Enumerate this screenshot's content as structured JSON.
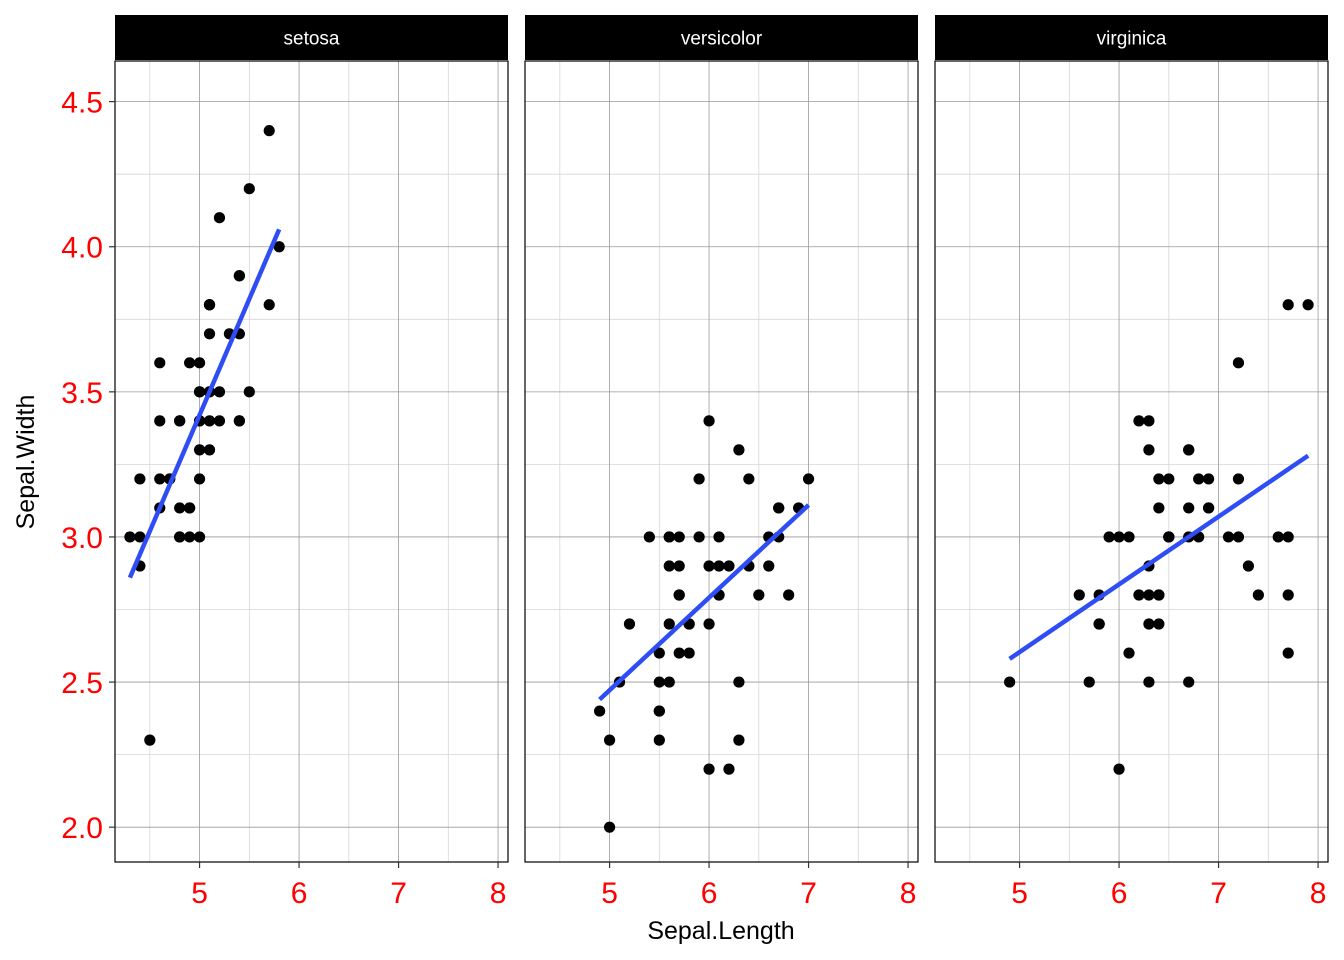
{
  "chart_data": {
    "type": "scatter",
    "xlabel": "Sepal.Length",
    "ylabel": "Sepal.Width",
    "xlim": [
      4.15,
      8.1
    ],
    "ylim": [
      1.88,
      4.64
    ],
    "x_ticks": [
      "5",
      "6",
      "7",
      "8"
    ],
    "y_ticks": [
      "2.0",
      "2.5",
      "3.0",
      "3.5",
      "4.0",
      "4.5"
    ],
    "x_tick_values": [
      5,
      6,
      7,
      8
    ],
    "y_tick_values": [
      2.0,
      2.5,
      3.0,
      3.5,
      4.0,
      4.5
    ],
    "grid": true,
    "colors": {
      "tick_label": "#ff0000",
      "point": "#000000",
      "fit_line": "#2e4df5",
      "strip_background": "#000000",
      "strip_text": "#ffffff",
      "grid_major": "#9a9a9a",
      "grid_minor": "#d6d6d6"
    },
    "panels": [
      {
        "name": "setosa",
        "fit": [
          [
            4.3,
            2.86
          ],
          [
            5.8,
            4.06
          ]
        ],
        "points": [
          [
            5.1,
            3.5
          ],
          [
            4.9,
            3.0
          ],
          [
            4.7,
            3.2
          ],
          [
            4.6,
            3.1
          ],
          [
            5.0,
            3.6
          ],
          [
            5.4,
            3.9
          ],
          [
            4.6,
            3.4
          ],
          [
            5.0,
            3.4
          ],
          [
            4.4,
            2.9
          ],
          [
            4.9,
            3.1
          ],
          [
            5.4,
            3.7
          ],
          [
            4.8,
            3.4
          ],
          [
            4.8,
            3.0
          ],
          [
            4.3,
            3.0
          ],
          [
            5.8,
            4.0
          ],
          [
            5.7,
            4.4
          ],
          [
            5.4,
            3.9
          ],
          [
            5.1,
            3.5
          ],
          [
            5.7,
            3.8
          ],
          [
            5.1,
            3.8
          ],
          [
            5.4,
            3.4
          ],
          [
            5.1,
            3.7
          ],
          [
            4.6,
            3.6
          ],
          [
            5.1,
            3.3
          ],
          [
            4.8,
            3.4
          ],
          [
            5.0,
            3.0
          ],
          [
            5.0,
            3.4
          ],
          [
            5.2,
            3.5
          ],
          [
            5.2,
            3.4
          ],
          [
            4.7,
            3.2
          ],
          [
            4.8,
            3.1
          ],
          [
            5.4,
            3.4
          ],
          [
            5.2,
            4.1
          ],
          [
            5.5,
            4.2
          ],
          [
            4.9,
            3.1
          ],
          [
            5.0,
            3.2
          ],
          [
            5.5,
            3.5
          ],
          [
            4.9,
            3.6
          ],
          [
            4.4,
            3.0
          ],
          [
            5.1,
            3.4
          ],
          [
            5.0,
            3.5
          ],
          [
            4.5,
            2.3
          ],
          [
            4.4,
            3.2
          ],
          [
            5.0,
            3.5
          ],
          [
            5.1,
            3.8
          ],
          [
            4.8,
            3.0
          ],
          [
            5.1,
            3.8
          ],
          [
            4.6,
            3.2
          ],
          [
            5.3,
            3.7
          ],
          [
            5.0,
            3.3
          ]
        ]
      },
      {
        "name": "versicolor",
        "fit": [
          [
            4.9,
            2.44
          ],
          [
            7.0,
            3.11
          ]
        ],
        "points": [
          [
            7.0,
            3.2
          ],
          [
            6.4,
            3.2
          ],
          [
            6.9,
            3.1
          ],
          [
            5.5,
            2.3
          ],
          [
            6.5,
            2.8
          ],
          [
            5.7,
            2.8
          ],
          [
            6.3,
            3.3
          ],
          [
            4.9,
            2.4
          ],
          [
            6.6,
            2.9
          ],
          [
            5.2,
            2.7
          ],
          [
            5.0,
            2.0
          ],
          [
            5.9,
            3.0
          ],
          [
            6.0,
            2.2
          ],
          [
            6.1,
            2.9
          ],
          [
            5.6,
            2.9
          ],
          [
            6.7,
            3.1
          ],
          [
            5.6,
            3.0
          ],
          [
            5.8,
            2.7
          ],
          [
            6.2,
            2.2
          ],
          [
            5.6,
            2.5
          ],
          [
            5.9,
            3.2
          ],
          [
            6.1,
            2.8
          ],
          [
            6.3,
            2.5
          ],
          [
            6.1,
            2.8
          ],
          [
            6.4,
            2.9
          ],
          [
            6.6,
            3.0
          ],
          [
            6.8,
            2.8
          ],
          [
            6.7,
            3.0
          ],
          [
            6.0,
            2.9
          ],
          [
            5.7,
            2.6
          ],
          [
            5.5,
            2.4
          ],
          [
            5.5,
            2.4
          ],
          [
            5.8,
            2.7
          ],
          [
            6.0,
            2.7
          ],
          [
            5.4,
            3.0
          ],
          [
            6.0,
            3.4
          ],
          [
            6.7,
            3.1
          ],
          [
            6.3,
            2.3
          ],
          [
            5.6,
            3.0
          ],
          [
            5.5,
            2.5
          ],
          [
            5.5,
            2.6
          ],
          [
            6.1,
            3.0
          ],
          [
            5.8,
            2.6
          ],
          [
            5.0,
            2.3
          ],
          [
            5.6,
            2.7
          ],
          [
            5.7,
            3.0
          ],
          [
            5.7,
            2.9
          ],
          [
            6.2,
            2.9
          ],
          [
            5.1,
            2.5
          ],
          [
            5.7,
            2.8
          ]
        ]
      },
      {
        "name": "virginica",
        "fit": [
          [
            4.9,
            2.58
          ],
          [
            7.9,
            3.28
          ]
        ],
        "points": [
          [
            6.3,
            3.3
          ],
          [
            5.8,
            2.7
          ],
          [
            7.1,
            3.0
          ],
          [
            6.3,
            2.9
          ],
          [
            6.5,
            3.0
          ],
          [
            7.6,
            3.0
          ],
          [
            4.9,
            2.5
          ],
          [
            7.3,
            2.9
          ],
          [
            6.7,
            2.5
          ],
          [
            7.2,
            3.6
          ],
          [
            6.5,
            3.2
          ],
          [
            6.4,
            2.7
          ],
          [
            6.8,
            3.0
          ],
          [
            5.7,
            2.5
          ],
          [
            5.8,
            2.8
          ],
          [
            6.4,
            3.2
          ],
          [
            6.5,
            3.0
          ],
          [
            7.7,
            3.8
          ],
          [
            7.7,
            2.6
          ],
          [
            6.0,
            2.2
          ],
          [
            6.9,
            3.2
          ],
          [
            5.6,
            2.8
          ],
          [
            7.7,
            2.8
          ],
          [
            6.3,
            2.7
          ],
          [
            6.7,
            3.3
          ],
          [
            7.2,
            3.2
          ],
          [
            6.2,
            2.8
          ],
          [
            6.1,
            3.0
          ],
          [
            6.4,
            2.8
          ],
          [
            7.2,
            3.0
          ],
          [
            7.4,
            2.8
          ],
          [
            7.9,
            3.8
          ],
          [
            6.4,
            2.8
          ],
          [
            6.3,
            2.8
          ],
          [
            6.1,
            2.6
          ],
          [
            7.7,
            3.0
          ],
          [
            6.3,
            3.4
          ],
          [
            6.4,
            3.1
          ],
          [
            6.0,
            3.0
          ],
          [
            6.9,
            3.1
          ],
          [
            6.7,
            3.1
          ],
          [
            6.9,
            3.1
          ],
          [
            5.8,
            2.7
          ],
          [
            6.8,
            3.2
          ],
          [
            6.7,
            3.3
          ],
          [
            6.7,
            3.0
          ],
          [
            6.3,
            2.5
          ],
          [
            6.5,
            3.0
          ],
          [
            6.2,
            3.4
          ],
          [
            5.9,
            3.0
          ]
        ]
      }
    ]
  }
}
